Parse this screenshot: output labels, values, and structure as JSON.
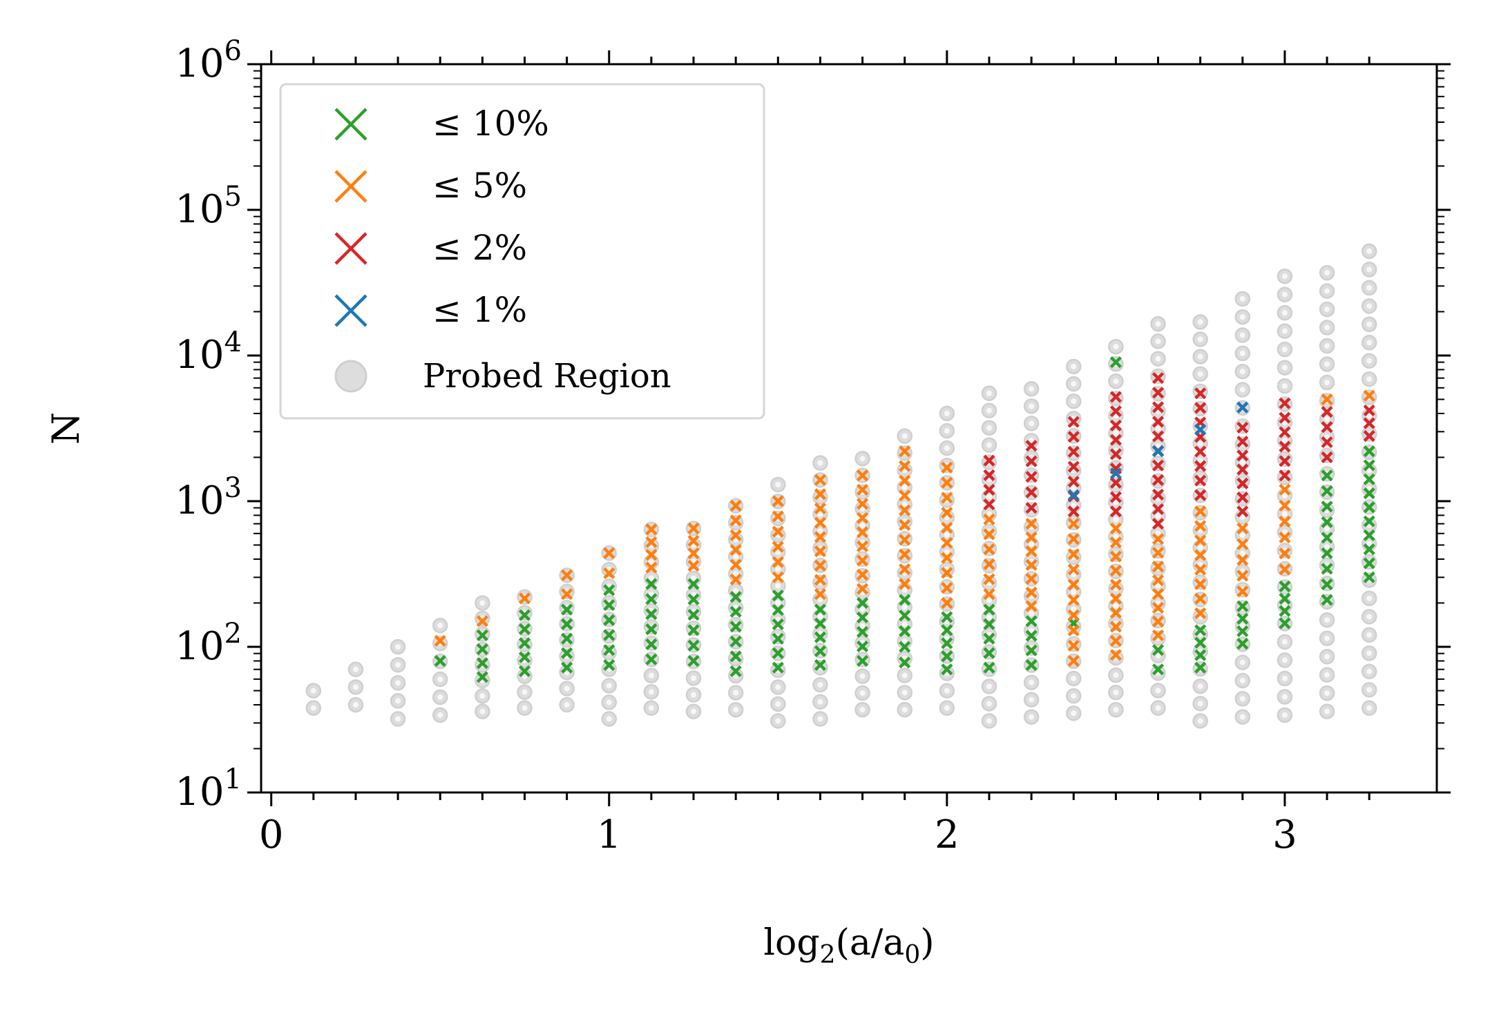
{
  "chart_data": {
    "type": "scatter",
    "title": "",
    "xlabel": {
      "base": "log",
      "sub1": "2",
      "mid": "(a/a",
      "sub2": "0",
      "end": ")"
    },
    "ylabel": "N",
    "xlim": [
      -0.03,
      3.45
    ],
    "ylim": [
      10,
      1000000
    ],
    "yscale": "log",
    "x_ticks": [
      {
        "value": 0,
        "label": "0"
      },
      {
        "value": 1,
        "label": "1"
      },
      {
        "value": 2,
        "label": "2"
      },
      {
        "value": 3,
        "label": "3"
      }
    ],
    "y_ticks": [
      {
        "value": 10,
        "base": "10",
        "exp": "1"
      },
      {
        "value": 100,
        "base": "10",
        "exp": "2"
      },
      {
        "value": 1000,
        "base": "10",
        "exp": "3"
      },
      {
        "value": 10000,
        "base": "10",
        "exp": "4"
      },
      {
        "value": 100000,
        "base": "10",
        "exp": "5"
      },
      {
        "value": 1000000,
        "base": "10",
        "exp": "6"
      }
    ],
    "legend": {
      "placement": "upper-left",
      "entries": [
        {
          "series": "le10",
          "label": "≤ 10%"
        },
        {
          "series": "le5",
          "label": "≤ 5%"
        },
        {
          "series": "le2",
          "label": "≤ 2%"
        },
        {
          "series": "le1",
          "label": "≤ 1%"
        },
        {
          "series": "probed",
          "label": "Probed Region"
        }
      ]
    },
    "colors": {
      "le10": "#2ca02c",
      "le5": "#ff7f0e",
      "le2": "#d62728",
      "le1": "#1f77b4",
      "probed": "#dddddd"
    },
    "columns": [
      {
        "x": 0.125,
        "nmin": 38,
        "nmax": 50,
        "points": 2,
        "le10": [],
        "le5": [],
        "le2": [],
        "le1": []
      },
      {
        "x": 0.25,
        "nmin": 40,
        "nmax": 70,
        "points": 3,
        "le10": [],
        "le5": [],
        "le2": [],
        "le1": []
      },
      {
        "x": 0.375,
        "nmin": 32,
        "nmax": 100,
        "points": 5,
        "le10": [],
        "le5": [],
        "le2": [],
        "le1": []
      },
      {
        "x": 0.5,
        "nmin": 34,
        "nmax": 140,
        "points": 6,
        "le10": [
          [
            80,
            80
          ]
        ],
        "le5": [
          [
            110,
            110
          ]
        ],
        "le2": [],
        "le1": []
      },
      {
        "x": 0.625,
        "nmin": 36,
        "nmax": 200,
        "points": 8,
        "le10": [
          [
            62,
            120
          ]
        ],
        "le5": [
          [
            150,
            150
          ]
        ],
        "le2": [],
        "le1": []
      },
      {
        "x": 0.75,
        "nmin": 38,
        "nmax": 220,
        "points": 8,
        "le10": [
          [
            68,
            165
          ]
        ],
        "le5": [
          [
            215,
            215
          ]
        ],
        "le2": [],
        "le1": []
      },
      {
        "x": 0.875,
        "nmin": 40,
        "nmax": 310,
        "points": 9,
        "le10": [
          [
            72,
            180
          ]
        ],
        "le5": [
          [
            230,
            310
          ]
        ],
        "le2": [],
        "le1": []
      },
      {
        "x": 1.0,
        "nmin": 32,
        "nmax": 440,
        "points": 11,
        "le10": [
          [
            75,
            245
          ]
        ],
        "le5": [
          [
            320,
            440
          ]
        ],
        "le2": [],
        "le1": []
      },
      {
        "x": 1.125,
        "nmin": 38,
        "nmax": 640,
        "points": 12,
        "le10": [
          [
            82,
            270
          ]
        ],
        "le5": [
          [
            350,
            640
          ]
        ],
        "le2": [],
        "le1": []
      },
      {
        "x": 1.25,
        "nmin": 36,
        "nmax": 650,
        "points": 12,
        "le10": [
          [
            80,
            270
          ]
        ],
        "le5": [
          [
            360,
            650
          ]
        ],
        "le2": [],
        "le1": []
      },
      {
        "x": 1.375,
        "nmin": 37,
        "nmax": 930,
        "points": 13,
        "le10": [
          [
            68,
            220
          ]
        ],
        "le5": [
          [
            290,
            930
          ]
        ],
        "le2": [],
        "le1": []
      },
      {
        "x": 1.5,
        "nmin": 31,
        "nmax": 1300,
        "points": 15,
        "le10": [
          [
            72,
            225
          ]
        ],
        "le5": [
          [
            300,
            1000
          ]
        ],
        "le2": [],
        "le1": []
      },
      {
        "x": 1.625,
        "nmin": 32,
        "nmax": 1830,
        "points": 16,
        "le10": [
          [
            75,
            180
          ]
        ],
        "le5": [
          [
            230,
            1400
          ]
        ],
        "le2": [],
        "le1": []
      },
      {
        "x": 1.75,
        "nmin": 37,
        "nmax": 1960,
        "points": 16,
        "le10": [
          [
            80,
            200
          ]
        ],
        "le5": [
          [
            250,
            1500
          ]
        ],
        "le2": [],
        "le1": []
      },
      {
        "x": 1.875,
        "nmin": 37,
        "nmax": 2800,
        "points": 17,
        "le10": [
          [
            78,
            210
          ]
        ],
        "le5": [
          [
            270,
            2200
          ]
        ],
        "le2": [],
        "le1": []
      },
      {
        "x": 2.0,
        "nmin": 38,
        "nmax": 4000,
        "points": 18,
        "le10": [
          [
            70,
            160
          ]
        ],
        "le5": [
          [
            200,
            1700
          ]
        ],
        "le2": [],
        "le1": []
      },
      {
        "x": 2.125,
        "nmin": 31,
        "nmax": 5500,
        "points": 20,
        "le10": [
          [
            72,
            180
          ]
        ],
        "le5": [
          [
            230,
            750
          ]
        ],
        "le2": [
          [
            950,
            1900
          ]
        ],
        "le1": []
      },
      {
        "x": 2.25,
        "nmin": 33,
        "nmax": 5900,
        "points": 20,
        "le10": [
          [
            75,
            150
          ]
        ],
        "le5": [
          [
            190,
            700
          ]
        ],
        "le2": [
          [
            900,
            2400
          ]
        ],
        "le1": []
      },
      {
        "x": 2.375,
        "nmin": 35,
        "nmax": 8400,
        "points": 21,
        "le10": [
          [
            145,
            145
          ]
        ],
        "le5": [
          [
            80,
            700
          ]
        ],
        "le2": [
          [
            850,
            3500
          ]
        ],
        "le1": [
          [
            1100,
            1100
          ]
        ]
      },
      {
        "x": 2.5,
        "nmin": 37,
        "nmax": 11500,
        "points": 22,
        "le10": [
          [
            9000,
            9000
          ]
        ],
        "le5": [
          [
            88,
            650
          ]
        ],
        "le2": [
          [
            850,
            5200
          ]
        ],
        "le1": [
          [
            1550,
            1550
          ]
        ]
      },
      {
        "x": 2.625,
        "nmin": 38,
        "nmax": 16500,
        "points": 23,
        "le10": [
          [
            70,
            95
          ]
        ],
        "le5": [
          [
            120,
            550
          ]
        ],
        "le2": [
          [
            700,
            7000
          ]
        ],
        "le1": [
          [
            2200,
            2200
          ]
        ]
      },
      {
        "x": 2.75,
        "nmin": 31,
        "nmax": 17000,
        "points": 24,
        "le10": [
          [
            72,
            130
          ]
        ],
        "le5": [
          [
            170,
            850
          ]
        ],
        "le2": [
          [
            1100,
            5500
          ]
        ],
        "le1": [
          [
            3100,
            3100
          ]
        ]
      },
      {
        "x": 2.875,
        "nmin": 33,
        "nmax": 24500,
        "points": 24,
        "le10": [
          [
            105,
            190
          ]
        ],
        "le5": [
          [
            240,
            650
          ]
        ],
        "le2": [
          [
            850,
            3200
          ]
        ],
        "le1": [
          [
            4400,
            4400
          ]
        ]
      },
      {
        "x": 3.0,
        "nmin": 34,
        "nmax": 35000,
        "points": 25,
        "le10": [
          [
            145,
            260
          ]
        ],
        "le5": [
          [
            340,
            1200
          ]
        ],
        "le2": [
          [
            1500,
            4700
          ]
        ],
        "le1": []
      },
      {
        "x": 3.125,
        "nmin": 36,
        "nmax": 37000,
        "points": 25,
        "le10": [
          [
            210,
            1500
          ]
        ],
        "le5": [
          [
            5000,
            5000
          ]
        ],
        "le2": [
          [
            2000,
            4100
          ]
        ],
        "le1": []
      },
      {
        "x": 3.25,
        "nmin": 38,
        "nmax": 52000,
        "points": 26,
        "le10": [
          [
            300,
            2200
          ]
        ],
        "le5": [
          [
            5300,
            5300
          ]
        ],
        "le2": [
          [
            2800,
            4200
          ]
        ],
        "le1": []
      }
    ]
  }
}
